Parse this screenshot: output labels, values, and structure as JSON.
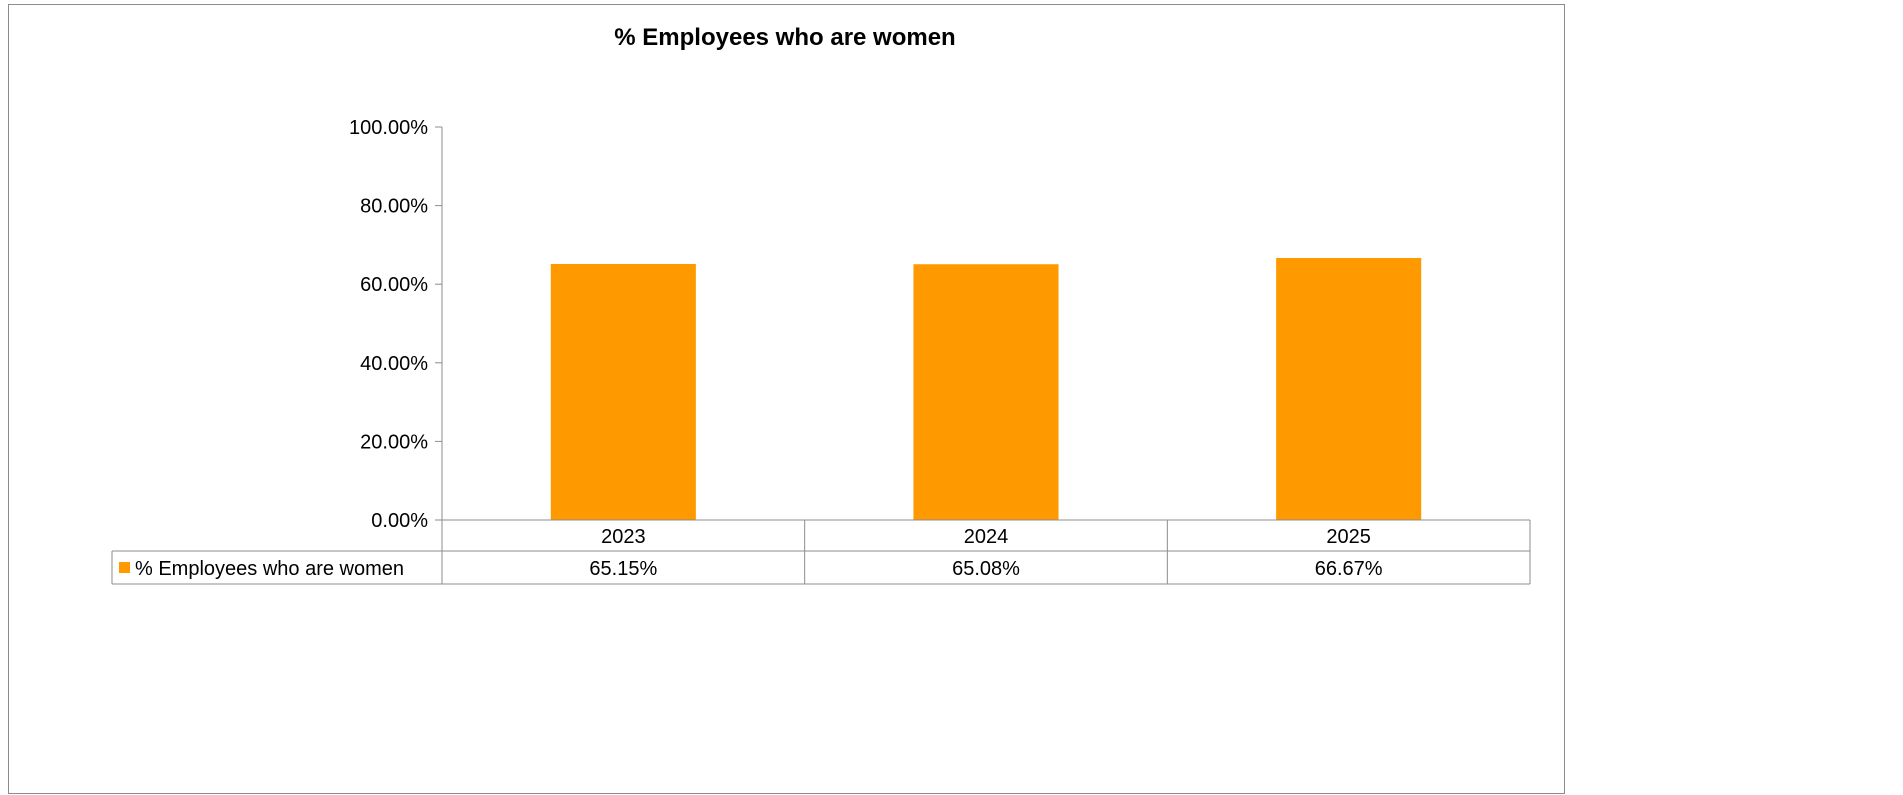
{
  "chart_data": {
    "type": "bar",
    "title": "% Employees who are women",
    "categories": [
      "2023",
      "2024",
      "2025"
    ],
    "series": [
      {
        "name": "% Employees who are women",
        "values": [
          65.15,
          65.08,
          66.67
        ],
        "value_labels": [
          "65.15%",
          "65.08%",
          "66.67%"
        ],
        "color": "#FF9900"
      }
    ],
    "ylim": [
      0,
      100
    ],
    "yticks": [
      0,
      20,
      40,
      60,
      80,
      100
    ],
    "ytick_labels": [
      "0.00%",
      "20.00%",
      "40.00%",
      "60.00%",
      "80.00%",
      "100.00%"
    ],
    "xlabel": "",
    "ylabel": "",
    "grid": false,
    "legend": "data table",
    "data_table": true
  }
}
